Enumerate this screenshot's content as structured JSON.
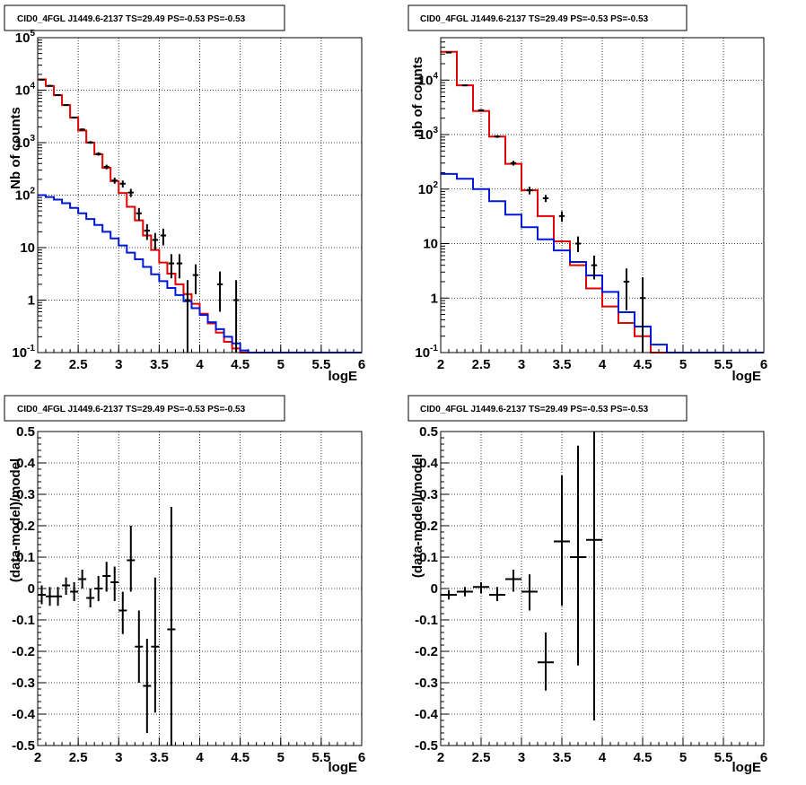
{
  "colors": {
    "data": "#000000",
    "total_model": "#e30000",
    "component_model": "#0018d6"
  },
  "chart_data": [
    {
      "type": "line",
      "id": "counts-fine",
      "title": "CID0_4FGL J1449.6-2137 TS=29.49 PS=-0.53 PS=-0.53",
      "xlabel": "logE",
      "ylabel": "Nb of counts",
      "xlim": [
        2,
        6
      ],
      "ylim": [
        0.1,
        100000
      ],
      "yscale": "log",
      "grid": true,
      "x_ticks": [
        "2",
        "2.5",
        "3",
        "3.5",
        "4",
        "4.5",
        "5",
        "5.5",
        "6"
      ],
      "y_ticks": [
        "10^-1",
        "1",
        "10",
        "10^2",
        "10^3",
        "10^4",
        "10^5"
      ],
      "bin_edges": [
        2,
        2.1,
        2.2,
        2.3,
        2.4,
        2.5,
        2.6,
        2.7,
        2.8,
        2.9,
        3,
        3.1,
        3.2,
        3.3,
        3.4,
        3.5,
        3.6,
        3.7,
        3.8,
        3.9,
        4,
        4.1,
        4.2,
        4.3,
        4.4,
        4.5,
        4.6,
        4.7,
        4.8,
        4.9,
        5,
        5.1,
        5.2,
        5.3,
        5.4,
        5.5,
        5.6,
        5.7,
        5.8,
        5.9,
        6
      ],
      "series": [
        {
          "style": "step",
          "color": "#e30000",
          "values": [
            16000,
            12000,
            8000,
            5200,
            3000,
            1700,
            1000,
            600,
            330,
            185,
            110,
            60,
            33,
            17,
            9,
            5.2,
            3.2,
            2,
            1.3,
            0.85,
            0.55,
            0.36,
            0.24,
            0.16,
            0.12,
            0.1,
            0.1,
            0.1,
            0.1,
            0.1,
            0.1,
            0.1,
            0.1,
            0.1,
            0.1,
            0.1,
            0.1,
            0.1,
            0.1,
            0.1
          ]
        },
        {
          "style": "step",
          "color": "#0018d6",
          "values": [
            100,
            92,
            82,
            70,
            57,
            45,
            35,
            27,
            20,
            15,
            11,
            8,
            6,
            4.3,
            3.1,
            2.3,
            1.7,
            1.25,
            0.95,
            0.7,
            0.52,
            0.38,
            0.28,
            0.2,
            0.15,
            0.11,
            0.1,
            0.1,
            0.1,
            0.1,
            0.1,
            0.1,
            0.1,
            0.1,
            0.1,
            0.1,
            0.1,
            0.1,
            0.1,
            0.1
          ]
        },
        {
          "style": "errorbar",
          "color": "#000000",
          "points": [
            {
              "x": 2.05,
              "y": 15800,
              "lo": 15600,
              "hi": 16000
            },
            {
              "x": 2.15,
              "y": 12100,
              "lo": 11900,
              "hi": 12300
            },
            {
              "x": 2.25,
              "y": 8050,
              "lo": 7900,
              "hi": 8200
            },
            {
              "x": 2.35,
              "y": 5200,
              "lo": 5080,
              "hi": 5320
            },
            {
              "x": 2.45,
              "y": 3000,
              "lo": 2900,
              "hi": 3100
            },
            {
              "x": 2.55,
              "y": 1780,
              "lo": 1700,
              "hi": 1860
            },
            {
              "x": 2.65,
              "y": 1010,
              "lo": 950,
              "hi": 1070
            },
            {
              "x": 2.75,
              "y": 610,
              "lo": 565,
              "hi": 655
            },
            {
              "x": 2.85,
              "y": 345,
              "lo": 310,
              "hi": 380
            },
            {
              "x": 2.95,
              "y": 190,
              "lo": 165,
              "hi": 215
            },
            {
              "x": 3.05,
              "y": 165,
              "lo": 140,
              "hi": 190
            },
            {
              "x": 3.15,
              "y": 112,
              "lo": 92,
              "hi": 132
            },
            {
              "x": 3.25,
              "y": 45,
              "lo": 33,
              "hi": 57
            },
            {
              "x": 3.35,
              "y": 21,
              "lo": 14,
              "hi": 28
            },
            {
              "x": 3.45,
              "y": 14,
              "lo": 9,
              "hi": 19
            },
            {
              "x": 3.55,
              "y": 17,
              "lo": 11,
              "hi": 23
            },
            {
              "x": 3.65,
              "y": 5,
              "lo": 2.6,
              "hi": 7.5
            },
            {
              "x": 3.75,
              "y": 5,
              "lo": 2.6,
              "hi": 7.5
            },
            {
              "x": 3.85,
              "y": 1,
              "lo": 0.1,
              "hi": 2.4
            },
            {
              "x": 3.95,
              "y": 3,
              "lo": 1.3,
              "hi": 4.8
            },
            {
              "x": 4.25,
              "y": 2,
              "lo": 0.6,
              "hi": 3.5
            },
            {
              "x": 4.45,
              "y": 1,
              "lo": 0.1,
              "hi": 2.4
            }
          ]
        }
      ]
    },
    {
      "type": "line",
      "id": "counts-coarse",
      "title": "CID0_4FGL J1449.6-2137 TS=29.49 PS=-0.53 PS=-0.53",
      "xlabel": "logE",
      "ylabel": "nb of counts",
      "xlim": [
        2,
        6
      ],
      "ylim": [
        0.1,
        60000
      ],
      "yscale": "log",
      "grid": true,
      "x_ticks": [
        "2",
        "2.5",
        "3",
        "3.5",
        "4",
        "4.5",
        "5",
        "5.5",
        "6"
      ],
      "y_ticks": [
        "10^-1",
        "1",
        "10",
        "10^2",
        "10^3",
        "10^4"
      ],
      "bin_edges": [
        2,
        2.2,
        2.4,
        2.6,
        2.8,
        3,
        3.2,
        3.4,
        3.6,
        3.8,
        4,
        4.2,
        4.4,
        4.6,
        4.8,
        5,
        5.2,
        5.4,
        5.6,
        5.8,
        6
      ],
      "series": [
        {
          "style": "step",
          "color": "#e30000",
          "values": [
            33000,
            8000,
            2700,
            920,
            290,
            95,
            32,
            11,
            4,
            1.5,
            0.7,
            0.35,
            0.2,
            0.1,
            0.1,
            0.1,
            0.1,
            0.1,
            0.1,
            0.1
          ]
        },
        {
          "style": "step",
          "color": "#0018d6",
          "values": [
            190,
            155,
            100,
            60,
            34,
            20,
            12,
            7.5,
            4.6,
            2.6,
            1.3,
            0.55,
            0.3,
            0.14,
            0.1,
            0.1,
            0.1,
            0.1,
            0.1,
            0.1
          ]
        },
        {
          "style": "errorbar",
          "color": "#000000",
          "points": [
            {
              "x": 2.1,
              "y": 32000,
              "lo": 31700,
              "hi": 32300
            },
            {
              "x": 2.3,
              "y": 8000,
              "lo": 7850,
              "hi": 8150
            },
            {
              "x": 2.5,
              "y": 2800,
              "lo": 2700,
              "hi": 2900
            },
            {
              "x": 2.7,
              "y": 920,
              "lo": 870,
              "hi": 970
            },
            {
              "x": 2.9,
              "y": 300,
              "lo": 270,
              "hi": 330
            },
            {
              "x": 3.1,
              "y": 95,
              "lo": 80,
              "hi": 110
            },
            {
              "x": 3.3,
              "y": 68,
              "lo": 58,
              "hi": 78
            },
            {
              "x": 3.5,
              "y": 32,
              "lo": 25,
              "hi": 39
            },
            {
              "x": 3.7,
              "y": 10,
              "lo": 7,
              "hi": 13.5
            },
            {
              "x": 3.9,
              "y": 4,
              "lo": 2.2,
              "hi": 6
            },
            {
              "x": 4.3,
              "y": 2,
              "lo": 0.6,
              "hi": 3.5
            },
            {
              "x": 4.5,
              "y": 1,
              "lo": 0.1,
              "hi": 2.4
            }
          ]
        }
      ]
    },
    {
      "type": "scatter",
      "id": "residuals-fine",
      "title": "CID0_4FGL J1449.6-2137 TS=29.49 PS=-0.53 PS=-0.53",
      "xlabel": "logE",
      "ylabel": "(data-model)/model",
      "xlim": [
        2,
        6
      ],
      "ylim": [
        -0.5,
        0.5
      ],
      "yscale": "linear",
      "grid": true,
      "x_ticks": [
        "2",
        "2.5",
        "3",
        "3.5",
        "4",
        "4.5",
        "5",
        "5.5",
        "6"
      ],
      "y_ticks": [
        "-0.5",
        "-0.4",
        "-0.3",
        "-0.2",
        "-0.1",
        "0",
        "0.1",
        "0.2",
        "0.3",
        "0.4",
        "0.5"
      ],
      "series": [
        {
          "style": "errorbar",
          "color": "#000000",
          "xerr": 0.05,
          "points": [
            {
              "x": 2.05,
              "y": -0.02,
              "lo": -0.05,
              "hi": 0.01
            },
            {
              "x": 2.15,
              "y": -0.025,
              "lo": -0.055,
              "hi": 0.005
            },
            {
              "x": 2.25,
              "y": -0.025,
              "lo": -0.055,
              "hi": 0.005
            },
            {
              "x": 2.35,
              "y": 0.01,
              "lo": -0.02,
              "hi": 0.035
            },
            {
              "x": 2.45,
              "y": -0.01,
              "lo": -0.04,
              "hi": 0.02
            },
            {
              "x": 2.55,
              "y": 0.03,
              "lo": 0.0,
              "hi": 0.06
            },
            {
              "x": 2.65,
              "y": -0.03,
              "lo": -0.06,
              "hi": 0.0
            },
            {
              "x": 2.75,
              "y": 0.0,
              "lo": -0.04,
              "hi": 0.04
            },
            {
              "x": 2.85,
              "y": 0.04,
              "lo": -0.01,
              "hi": 0.085
            },
            {
              "x": 2.95,
              "y": 0.02,
              "lo": -0.04,
              "hi": 0.07
            },
            {
              "x": 3.05,
              "y": -0.07,
              "lo": -0.145,
              "hi": -0.01
            },
            {
              "x": 3.15,
              "y": 0.09,
              "lo": -0.01,
              "hi": 0.2
            },
            {
              "x": 3.25,
              "y": -0.185,
              "lo": -0.3,
              "hi": -0.07
            },
            {
              "x": 3.35,
              "y": -0.31,
              "lo": -0.46,
              "hi": -0.16
            },
            {
              "x": 3.45,
              "y": -0.185,
              "lo": -0.395,
              "hi": 0.035
            },
            {
              "x": 3.65,
              "y": -0.13,
              "lo": -0.5,
              "hi": 0.26
            }
          ]
        }
      ]
    },
    {
      "type": "scatter",
      "id": "residuals-coarse",
      "title": "CID0_4FGL J1449.6-2137 TS=29.49 PS=-0.53 PS=-0.53",
      "xlabel": "logE",
      "ylabel": "(data-model)/model",
      "xlim": [
        2,
        6
      ],
      "ylim": [
        -0.5,
        0.5
      ],
      "yscale": "linear",
      "grid": true,
      "x_ticks": [
        "2",
        "2.5",
        "3",
        "3.5",
        "4",
        "4.5",
        "5",
        "5.5",
        "6"
      ],
      "y_ticks": [
        "-0.5",
        "-0.4",
        "-0.3",
        "-0.2",
        "-0.1",
        "0",
        "0.1",
        "0.2",
        "0.3",
        "0.4",
        "0.5"
      ],
      "series": [
        {
          "style": "errorbar",
          "color": "#000000",
          "xerr": 0.1,
          "points": [
            {
              "x": 2.1,
              "y": -0.02,
              "lo": -0.035,
              "hi": -0.005
            },
            {
              "x": 2.3,
              "y": -0.01,
              "lo": -0.025,
              "hi": 0.005
            },
            {
              "x": 2.5,
              "y": 0.005,
              "lo": -0.015,
              "hi": 0.02
            },
            {
              "x": 2.7,
              "y": -0.02,
              "lo": -0.04,
              "hi": 0.005
            },
            {
              "x": 2.9,
              "y": 0.03,
              "lo": -0.01,
              "hi": 0.06
            },
            {
              "x": 3.1,
              "y": -0.01,
              "lo": -0.07,
              "hi": 0.045
            },
            {
              "x": 3.3,
              "y": -0.235,
              "lo": -0.325,
              "hi": -0.14
            },
            {
              "x": 3.5,
              "y": 0.15,
              "lo": -0.055,
              "hi": 0.36
            },
            {
              "x": 3.7,
              "y": 0.1,
              "lo": -0.245,
              "hi": 0.455
            },
            {
              "x": 3.9,
              "y": 0.155,
              "lo": -0.42,
              "hi": 0.5
            }
          ]
        }
      ]
    }
  ]
}
